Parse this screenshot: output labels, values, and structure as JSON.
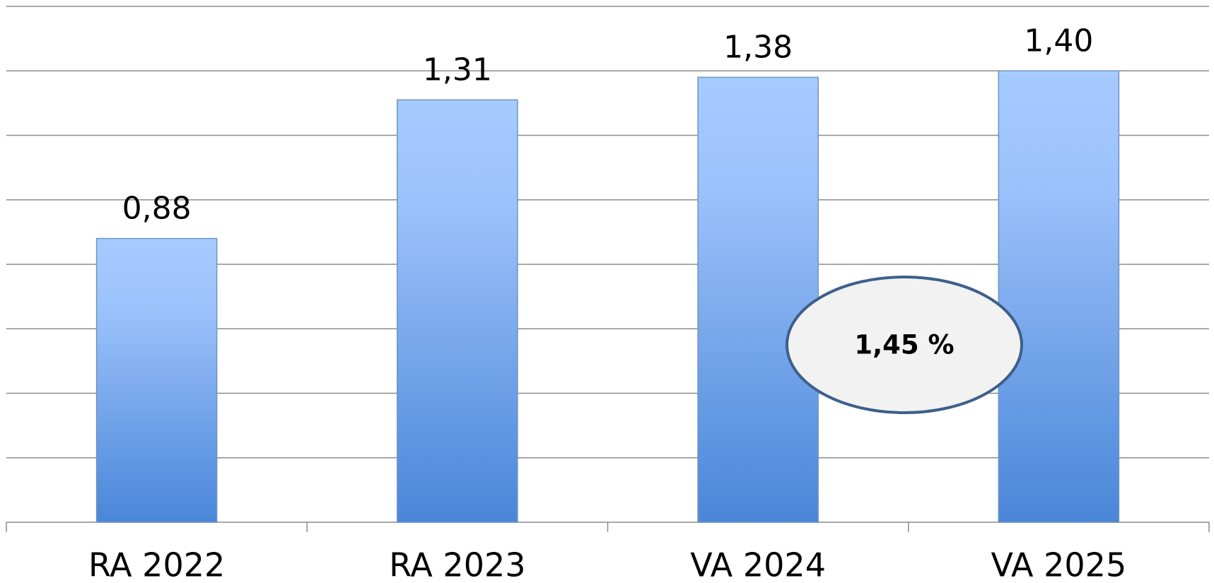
{
  "chart_data": {
    "type": "bar",
    "categories": [
      "RA 2022",
      "RA 2023",
      "VA 2024",
      "VA 2025"
    ],
    "values": [
      0.88,
      1.31,
      1.38,
      1.4
    ],
    "value_labels": [
      "0,88",
      "1,31",
      "1,38",
      "1,40"
    ],
    "color": "#4a86d8",
    "ylim": [
      0,
      1.6
    ],
    "yticks": [
      0,
      0.2,
      0.4,
      0.6,
      0.8,
      1.0,
      1.2,
      1.4,
      1.6
    ],
    "grid": true,
    "annotation": "1,45 %"
  }
}
